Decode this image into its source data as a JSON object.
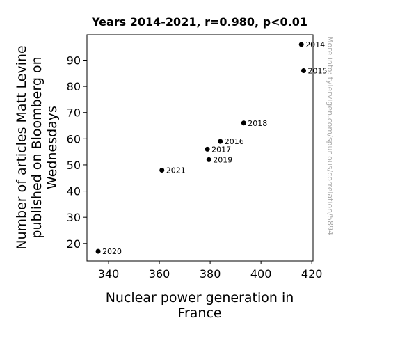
{
  "chart_data": {
    "type": "scatter",
    "title": "Years 2014-2021, r=0.980, p<0.01",
    "xlabel_lines": [
      "Nuclear power generation in",
      "France"
    ],
    "ylabel_lines": [
      "Number of articles Matt Levine",
      "published on Bloomberg on",
      "Wednesdays"
    ],
    "xlim": [
      331.5,
      420.5
    ],
    "ylim": [
      13.3,
      99.7
    ],
    "xticks": [
      340,
      360,
      380,
      400,
      420
    ],
    "yticks": [
      20,
      30,
      40,
      50,
      60,
      70,
      80,
      90
    ],
    "grid": false,
    "marker_color": "#000000",
    "points": [
      {
        "label": "2014",
        "x": 415.9,
        "y": 96
      },
      {
        "label": "2015",
        "x": 416.8,
        "y": 86
      },
      {
        "label": "2016",
        "x": 384.0,
        "y": 59
      },
      {
        "label": "2017",
        "x": 378.9,
        "y": 56
      },
      {
        "label": "2018",
        "x": 393.2,
        "y": 66
      },
      {
        "label": "2019",
        "x": 379.5,
        "y": 52
      },
      {
        "label": "2020",
        "x": 335.9,
        "y": 17
      },
      {
        "label": "2021",
        "x": 361.0,
        "y": 48
      }
    ]
  },
  "watermark": "More info: tylervigen.com/spurious/correlation/5894"
}
